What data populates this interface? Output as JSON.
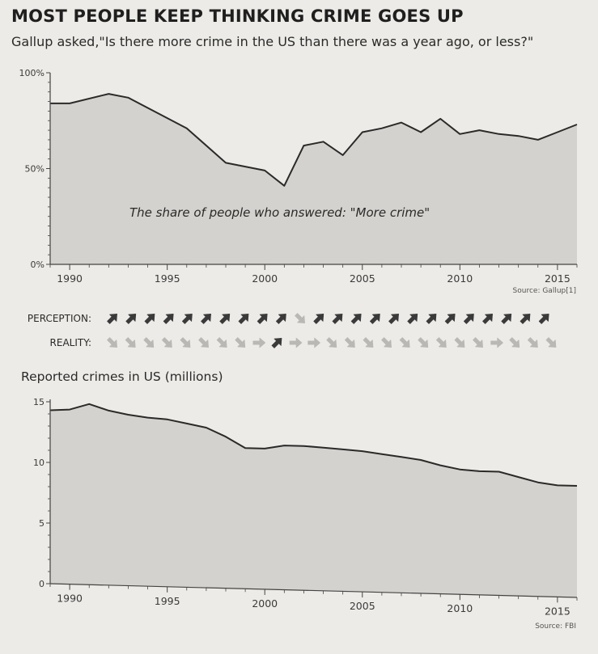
{
  "header": {
    "title": "MOST PEOPLE KEEP THINKING CRIME GOES UP",
    "subtitle": "Gallup asked,\"Is there more crime in the US than there was a year ago, or less?\""
  },
  "chart_data": [
    {
      "type": "area",
      "title": "The share of people who answered: \"More crime\"",
      "x": [
        1989,
        1990,
        1992,
        1993,
        1996,
        1998,
        1999,
        2000,
        2001,
        2002,
        2003,
        2004,
        2005,
        2006,
        2007,
        2008,
        2009,
        2010,
        2011,
        2012,
        2013,
        2014,
        2015,
        2016
      ],
      "y": [
        84,
        84,
        89,
        87,
        71,
        53,
        51,
        49,
        41,
        62,
        64,
        57,
        69,
        71,
        74,
        69,
        76,
        68,
        70,
        68,
        67,
        65,
        69,
        73
      ],
      "xlim": [
        1989,
        2016
      ],
      "ylim": [
        0,
        100
      ],
      "yticks": [
        0,
        50,
        100
      ],
      "ytick_labels": [
        "0%",
        "50%",
        "100%"
      ],
      "xticks": [
        1990,
        1995,
        2000,
        2005,
        2010,
        2015
      ],
      "source": "Source: Gallup[1]",
      "grid": false
    },
    {
      "type": "area",
      "title": "Reported crimes in US (millions)",
      "x": [
        1989,
        1990,
        1991,
        1992,
        1993,
        1994,
        1995,
        1996,
        1997,
        1998,
        1999,
        2000,
        2001,
        2002,
        2003,
        2004,
        2005,
        2006,
        2007,
        2008,
        2009,
        2010,
        2011,
        2012,
        2013,
        2014,
        2015,
        2016
      ],
      "y": [
        14.3,
        14.4,
        14.9,
        14.4,
        14.1,
        13.9,
        13.8,
        13.5,
        13.2,
        12.5,
        11.6,
        11.6,
        11.9,
        11.9,
        11.8,
        11.7,
        11.6,
        11.4,
        11.2,
        11.0,
        10.6,
        10.3,
        10.2,
        10.2,
        9.8,
        9.4,
        9.2,
        9.2
      ],
      "xlim": [
        1989,
        2016
      ],
      "ylim": [
        0,
        15
      ],
      "yticks": [
        0,
        5,
        10,
        15
      ],
      "ytick_labels": [
        "0",
        "5",
        "10",
        "15"
      ],
      "xticks": [
        1990,
        1995,
        2000,
        2005,
        2010,
        2015
      ],
      "source": "Source: FBI",
      "grid": false
    }
  ],
  "arrows": {
    "perception_label": "PERCEPTION:",
    "reality_label": "REALITY:",
    "perception": [
      "up",
      "up",
      "up",
      "up",
      "up",
      "up",
      "up",
      "up",
      "up",
      "up",
      "down",
      "up",
      "up",
      "up",
      "up",
      "up",
      "up",
      "up",
      "up",
      "up",
      "up",
      "up",
      "up",
      "up"
    ],
    "reality": [
      "down",
      "down",
      "down",
      "down",
      "down",
      "down",
      "down",
      "down",
      "flat",
      "up",
      "flat",
      "flat",
      "down",
      "down",
      "down",
      "down",
      "down",
      "down",
      "down",
      "down",
      "down",
      "flat",
      "down",
      "down",
      "down"
    ]
  },
  "colors": {
    "area": "#d3d2ce",
    "line": "#2a2a2a",
    "axis": "#444444",
    "arrow_dark": "#3a3a3a",
    "arrow_light": "#b9b8b4",
    "background": "#ecebe7"
  }
}
